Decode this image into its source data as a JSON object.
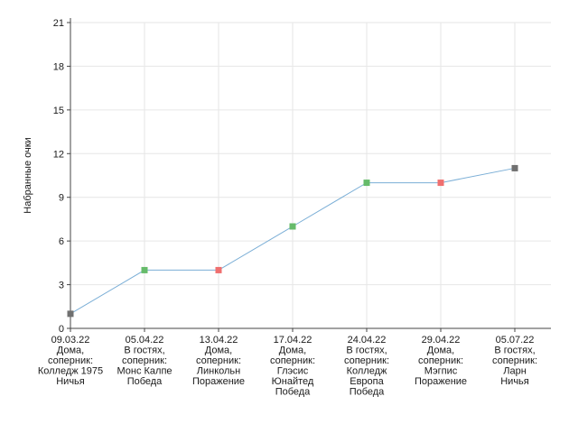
{
  "chart_data": {
    "type": "line",
    "title": "",
    "xlabel": "",
    "ylabel": "Набранные очки",
    "ylim": [
      0,
      21
    ],
    "yticks": [
      0,
      3,
      6,
      9,
      12,
      15,
      18,
      21
    ],
    "grid": true,
    "legend": "none",
    "line_color": "#7aaed6",
    "categories": [
      [
        "09.03.22",
        "Дома,",
        "соперник:",
        "Колледж 1975",
        "Ничья"
      ],
      [
        "05.04.22",
        "В гостях,",
        "соперник:",
        "Монс Калпе",
        "Победа"
      ],
      [
        "13.04.22",
        "Дома,",
        "соперник:",
        "Линкольн",
        "Поражение"
      ],
      [
        "17.04.22",
        "Дома,",
        "соперник:",
        "Глэсис",
        "Юнайтед",
        "Победа"
      ],
      [
        "24.04.22",
        "В гостях,",
        "соперник:",
        "Колледж",
        "Европа",
        "Победа"
      ],
      [
        "29.04.22",
        "Дома,",
        "соперник:",
        "Мэгпис",
        "Поражение"
      ],
      [
        "05.07.22",
        "В гостях,",
        "соперник:",
        "Ларн",
        "Ничья"
      ]
    ],
    "values": [
      1,
      4,
      4,
      7,
      10,
      10,
      11
    ],
    "results": [
      "Ничья",
      "Победа",
      "Поражение",
      "Победа",
      "Победа",
      "Поражение",
      "Ничья"
    ],
    "marker_colors": {
      "Победа": "#66bb6a",
      "Поражение": "#ef6f6f",
      "Ничья": "#707070"
    }
  }
}
